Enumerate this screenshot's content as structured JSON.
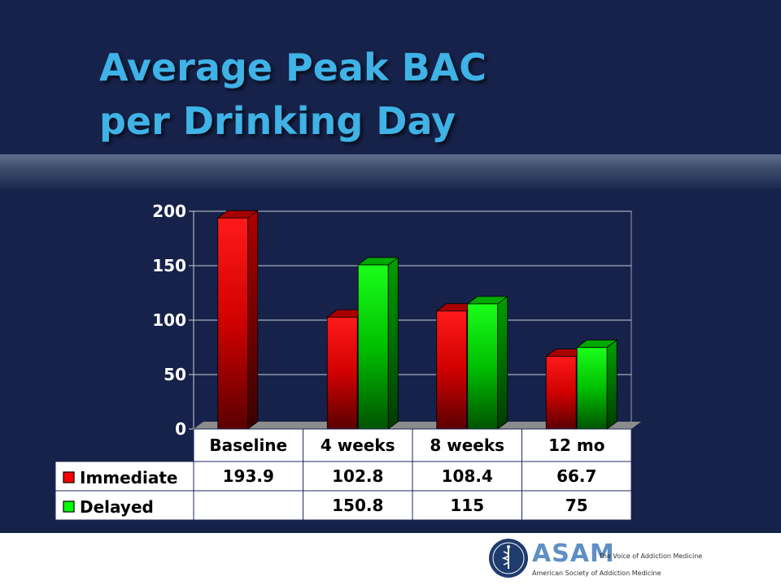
{
  "slide": {
    "title_lines": [
      "Average Peak BAC",
      "per Drinking Day"
    ]
  },
  "chart_data": {
    "type": "bar",
    "categories": [
      "Baseline",
      "4 weeks",
      "8 weeks",
      "12 mo"
    ],
    "series": [
      {
        "name": "Immediate",
        "values": [
          193.9,
          102.8,
          108.4,
          66.7
        ],
        "labels": [
          "193.9",
          "102.8",
          "108.4",
          "66.7"
        ],
        "color": "#ff0000"
      },
      {
        "name": "Delayed",
        "values": [
          null,
          150.8,
          115,
          75
        ],
        "labels": [
          "",
          "150.8",
          "115",
          "75"
        ],
        "color": "#00ff00"
      }
    ],
    "yticks": [
      "0",
      "50",
      "100",
      "150",
      "200"
    ],
    "ylim": [
      0,
      200
    ],
    "grid": true,
    "legend": "data-table-left",
    "data_table": true
  },
  "footer": {
    "org_abbr": "ASAM",
    "tagline": "The Voice of Addiction Medicine",
    "org_name": "American Society of Addiction Medicine",
    "logo_icon": "caduceus-seal-icon"
  },
  "colors": {
    "background": "#16224a",
    "title": "#3fb2e6",
    "immediate": "#ff0000",
    "delayed": "#00ff00"
  }
}
